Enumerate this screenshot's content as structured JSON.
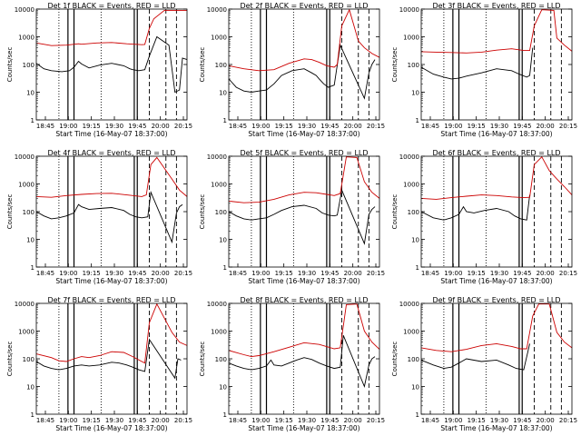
{
  "figure": {
    "colors": {
      "events": "#000000",
      "lld": "#cc0000",
      "frame": "#000000"
    },
    "start_time_label": "Start Time (16-May-07 18:37:00)"
  },
  "chart_data": [
    {
      "type": "line",
      "title": "Det 1f BLACK = Events, RED = LLD",
      "ylabel": "Counts/sec",
      "xlabel": "Start Time (16-May-07 18:37:00)",
      "yscale": "log",
      "ylim": [
        1,
        10000
      ],
      "y_tick_labels": [
        "1",
        "10",
        "100",
        "1000",
        "10000"
      ],
      "x_tick_labels": [
        "18:45",
        "19:00",
        "19:15",
        "19:30",
        "19:45",
        "20:00",
        "20:15"
      ],
      "series": [
        {
          "color": "black",
          "x": [
            0,
            0.05,
            0.1,
            0.17,
            0.22,
            0.25,
            0.28,
            0.3,
            0.35,
            0.42,
            0.5,
            0.58,
            0.6,
            0.62,
            0.64,
            0.68,
            0.72,
            0.75,
            0.8,
            0.88,
            0.92,
            0.95,
            0.97,
            1.0
          ],
          "y": [
            110,
            70,
            60,
            55,
            60,
            80,
            130,
            105,
            75,
            95,
            110,
            90,
            80,
            70,
            65,
            60,
            65,
            200,
            1000,
            500,
            10,
            12,
            170,
            150
          ]
        },
        {
          "color": "red",
          "x": [
            0,
            0.1,
            0.2,
            0.28,
            0.3,
            0.4,
            0.5,
            0.6,
            0.7,
            0.72,
            0.75,
            0.78,
            0.85,
            0.92,
            1.0
          ],
          "y": [
            600,
            480,
            500,
            560,
            540,
            600,
            620,
            560,
            520,
            530,
            2000,
            4500,
            9000,
            9000,
            9000
          ]
        }
      ]
    },
    {
      "type": "line",
      "title": "Det 2f BLACK = Events, RED = LLD",
      "ylabel": "Counts/sec",
      "xlabel": "Start Time (16-May-07 18:37:00)",
      "yscale": "log",
      "ylim": [
        1,
        10000
      ],
      "y_tick_labels": [
        "1",
        "10",
        "100",
        "1000",
        "10000"
      ],
      "x_tick_labels": [
        "18:45",
        "19:00",
        "19:15",
        "19:30",
        "19:45",
        "20:00",
        "20:15"
      ],
      "series": [
        {
          "color": "black",
          "x": [
            0,
            0.05,
            0.1,
            0.15,
            0.2,
            0.25,
            0.3,
            0.35,
            0.42,
            0.5,
            0.55,
            0.58,
            0.6,
            0.63,
            0.66,
            0.7,
            0.74,
            0.9,
            0.93,
            0.95,
            0.97
          ],
          "y": [
            30,
            15,
            11,
            10,
            11,
            12,
            20,
            40,
            60,
            70,
            50,
            40,
            30,
            20,
            15,
            18,
            500,
            6,
            50,
            100,
            150
          ]
        },
        {
          "color": "red",
          "x": [
            0,
            0.1,
            0.2,
            0.3,
            0.4,
            0.5,
            0.55,
            0.6,
            0.65,
            0.7,
            0.72,
            0.75,
            0.8,
            0.86,
            0.9,
            0.95,
            1.0
          ],
          "y": [
            90,
            70,
            60,
            65,
            110,
            160,
            150,
            120,
            90,
            80,
            100,
            2500,
            9500,
            700,
            400,
            250,
            180
          ]
        }
      ]
    },
    {
      "type": "line",
      "title": "Det 3f BLACK = Events, RED = LLD",
      "ylabel": "Counts/sec",
      "xlabel": "Start Time (16-May-07 18:37:00)",
      "yscale": "log",
      "ylim": [
        1,
        10000
      ],
      "y_tick_labels": [
        "1",
        "10",
        "100",
        "1000",
        "10000"
      ],
      "x_tick_labels": [
        "18:45",
        "19:00",
        "19:15",
        "19:30",
        "19:45",
        "20:00",
        "20:15"
      ],
      "series": [
        {
          "color": "black",
          "x": [
            0,
            0.08,
            0.15,
            0.2,
            0.25,
            0.3,
            0.4,
            0.5,
            0.6,
            0.65,
            0.7,
            0.72,
            0.74
          ],
          "y": [
            80,
            45,
            35,
            30,
            32,
            38,
            50,
            70,
            60,
            45,
            35,
            40,
            400
          ]
        },
        {
          "color": "red",
          "x": [
            0,
            0.1,
            0.2,
            0.3,
            0.4,
            0.5,
            0.6,
            0.68,
            0.72,
            0.75,
            0.8,
            0.88,
            0.9,
            0.95,
            1.0
          ],
          "y": [
            290,
            280,
            270,
            260,
            280,
            330,
            370,
            320,
            320,
            2500,
            9500,
            9000,
            900,
            500,
            300
          ]
        }
      ]
    },
    {
      "type": "line",
      "title": "Det 4f BLACK = Events, RED = LLD",
      "ylabel": "Counts/sec",
      "xlabel": "Start Time (16-May-07 18:37:00)",
      "yscale": "log",
      "ylim": [
        1,
        10000
      ],
      "y_tick_labels": [
        "1",
        "10",
        "100",
        "1000",
        "10000"
      ],
      "x_tick_labels": [
        "18:45",
        "19:00",
        "19:15",
        "19:30",
        "19:45",
        "20:00",
        "20:15"
      ],
      "series": [
        {
          "color": "black",
          "x": [
            0,
            0.05,
            0.1,
            0.15,
            0.2,
            0.25,
            0.28,
            0.3,
            0.35,
            0.42,
            0.5,
            0.58,
            0.62,
            0.66,
            0.7,
            0.74,
            0.76,
            0.9,
            0.93,
            0.95,
            0.97
          ],
          "y": [
            100,
            70,
            55,
            60,
            70,
            90,
            180,
            150,
            120,
            130,
            140,
            110,
            80,
            65,
            60,
            65,
            500,
            8,
            90,
            150,
            180
          ]
        },
        {
          "color": "red",
          "x": [
            0,
            0.1,
            0.2,
            0.3,
            0.4,
            0.5,
            0.6,
            0.7,
            0.73,
            0.76,
            0.8,
            0.9,
            0.95,
            1.0
          ],
          "y": [
            350,
            330,
            380,
            420,
            450,
            460,
            400,
            350,
            400,
            5000,
            9000,
            1500,
            600,
            350
          ]
        }
      ]
    },
    {
      "type": "line",
      "title": "Det 5f BLACK = Events, RED = LLD",
      "ylabel": "Counts/sec",
      "xlabel": "Start Time (16-May-07 18:37:00)",
      "yscale": "log",
      "ylim": [
        1,
        10000
      ],
      "y_tick_labels": [
        "1",
        "10",
        "100",
        "1000",
        "10000"
      ],
      "x_tick_labels": [
        "18:45",
        "19:00",
        "19:15",
        "19:30",
        "19:45",
        "20:00",
        "20:15"
      ],
      "series": [
        {
          "color": "black",
          "x": [
            0,
            0.05,
            0.1,
            0.15,
            0.2,
            0.25,
            0.3,
            0.35,
            0.42,
            0.5,
            0.58,
            0.62,
            0.66,
            0.7,
            0.72,
            0.75,
            0.9,
            0.93,
            0.95,
            0.97
          ],
          "y": [
            100,
            70,
            55,
            50,
            55,
            60,
            80,
            110,
            150,
            170,
            130,
            90,
            75,
            70,
            75,
            600,
            7,
            80,
            120,
            150
          ]
        },
        {
          "color": "red",
          "x": [
            0,
            0.1,
            0.2,
            0.3,
            0.4,
            0.5,
            0.58,
            0.65,
            0.7,
            0.74,
            0.78,
            0.85,
            0.9,
            0.95,
            1.0
          ],
          "y": [
            240,
            210,
            220,
            280,
            400,
            500,
            480,
            420,
            380,
            450,
            9500,
            9000,
            1200,
            500,
            300
          ]
        }
      ]
    },
    {
      "type": "line",
      "title": "Det 6f BLACK = Events, RED = LLD",
      "ylabel": "Counts/sec",
      "xlabel": "Start Time (16-May-07 18:37:00)",
      "yscale": "log",
      "ylim": [
        1,
        10000
      ],
      "y_tick_labels": [
        "1",
        "10",
        "100",
        "1000",
        "10000"
      ],
      "x_tick_labels": [
        "18:45",
        "19:00",
        "19:15",
        "19:30",
        "19:45",
        "20:00",
        "20:15"
      ],
      "series": [
        {
          "color": "black",
          "x": [
            0,
            0.08,
            0.15,
            0.2,
            0.25,
            0.28,
            0.3,
            0.35,
            0.42,
            0.5,
            0.58,
            0.62,
            0.66,
            0.7,
            0.72
          ],
          "y": [
            100,
            60,
            50,
            60,
            80,
            150,
            100,
            90,
            110,
            130,
            100,
            70,
            55,
            50,
            400
          ]
        },
        {
          "color": "red",
          "x": [
            0,
            0.1,
            0.2,
            0.3,
            0.4,
            0.5,
            0.6,
            0.68,
            0.72,
            0.75,
            0.8,
            0.85,
            0.9,
            0.95,
            1.0
          ],
          "y": [
            300,
            280,
            320,
            360,
            400,
            380,
            340,
            320,
            330,
            5000,
            9500,
            3000,
            1500,
            800,
            400
          ]
        }
      ]
    },
    {
      "type": "line",
      "title": "Det 7f BLACK = Events, RED = LLD",
      "ylabel": "Counts/sec",
      "xlabel": "Start Time (16-May-07 18:37:00)",
      "yscale": "log",
      "ylim": [
        1,
        10000
      ],
      "y_tick_labels": [
        "1",
        "10",
        "100",
        "1000",
        "10000"
      ],
      "x_tick_labels": [
        "18:45",
        "19:00",
        "19:15",
        "19:30",
        "19:45",
        "20:00",
        "20:15"
      ],
      "series": [
        {
          "color": "black",
          "x": [
            0,
            0.05,
            0.1,
            0.15,
            0.2,
            0.25,
            0.3,
            0.35,
            0.42,
            0.5,
            0.55,
            0.6,
            0.64,
            0.68,
            0.72,
            0.75,
            0.92,
            0.94,
            0.96
          ],
          "y": [
            80,
            55,
            45,
            40,
            45,
            55,
            60,
            55,
            60,
            75,
            70,
            60,
            50,
            40,
            35,
            500,
            20,
            100,
            90
          ]
        },
        {
          "color": "red",
          "x": [
            0,
            0.1,
            0.15,
            0.2,
            0.25,
            0.3,
            0.35,
            0.42,
            0.5,
            0.58,
            0.64,
            0.7,
            0.72,
            0.75,
            0.8,
            0.9,
            0.95,
            1.0
          ],
          "y": [
            150,
            110,
            85,
            80,
            100,
            120,
            110,
            130,
            180,
            170,
            120,
            80,
            70,
            2000,
            9500,
            900,
            400,
            300
          ]
        }
      ]
    },
    {
      "type": "line",
      "title": "Det 8f BLACK = Events, RED = LLD",
      "ylabel": "Counts/sec",
      "xlabel": "Start Time (16-May-07 18:37:00)",
      "yscale": "log",
      "ylim": [
        1,
        10000
      ],
      "y_tick_labels": [
        "1",
        "10",
        "100",
        "1000",
        "10000"
      ],
      "x_tick_labels": [
        "18:45",
        "19:00",
        "19:15",
        "19:30",
        "19:45",
        "20:00",
        "20:15"
      ],
      "series": [
        {
          "color": "black",
          "x": [
            0,
            0.05,
            0.1,
            0.15,
            0.2,
            0.25,
            0.28,
            0.3,
            0.35,
            0.4,
            0.45,
            0.5,
            0.55,
            0.6,
            0.65,
            0.7,
            0.74,
            0.76,
            0.9,
            0.93,
            0.95,
            0.97
          ],
          "y": [
            70,
            55,
            45,
            40,
            45,
            55,
            90,
            60,
            55,
            70,
            90,
            110,
            95,
            70,
            55,
            45,
            50,
            700,
            10,
            60,
            100,
            120
          ]
        },
        {
          "color": "red",
          "x": [
            0,
            0.1,
            0.15,
            0.2,
            0.3,
            0.4,
            0.5,
            0.6,
            0.7,
            0.74,
            0.78,
            0.85,
            0.9,
            0.95,
            1.0
          ],
          "y": [
            200,
            140,
            120,
            130,
            180,
            260,
            380,
            330,
            230,
            250,
            9000,
            9500,
            1000,
            400,
            220
          ]
        }
      ]
    },
    {
      "type": "line",
      "title": "Det 9f BLACK = Events, RED = LLD",
      "ylabel": "Counts/sec",
      "xlabel": "Start Time (16-May-07 18:37:00)",
      "yscale": "log",
      "ylim": [
        1,
        10000
      ],
      "y_tick_labels": [
        "1",
        "10",
        "100",
        "1000",
        "10000"
      ],
      "x_tick_labels": [
        "18:45",
        "19:00",
        "19:15",
        "19:30",
        "19:45",
        "20:00",
        "20:15"
      ],
      "series": [
        {
          "color": "black",
          "x": [
            0,
            0.08,
            0.15,
            0.2,
            0.25,
            0.3,
            0.4,
            0.5,
            0.58,
            0.63,
            0.68,
            0.72
          ],
          "y": [
            90,
            60,
            45,
            50,
            70,
            100,
            80,
            90,
            60,
            45,
            40,
            350
          ]
        },
        {
          "color": "red",
          "x": [
            0,
            0.1,
            0.2,
            0.3,
            0.4,
            0.5,
            0.6,
            0.66,
            0.7,
            0.74,
            0.78,
            0.85,
            0.9,
            0.95,
            1.0
          ],
          "y": [
            250,
            200,
            180,
            220,
            300,
            350,
            280,
            230,
            230,
            3500,
            9500,
            9500,
            900,
            400,
            250
          ]
        }
      ]
    }
  ]
}
